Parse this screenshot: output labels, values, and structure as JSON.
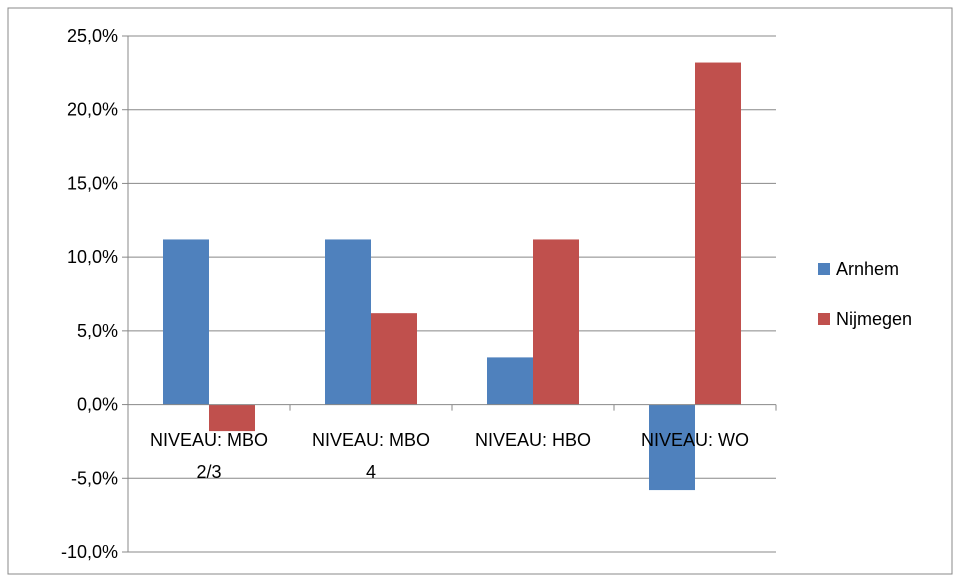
{
  "chart_data": {
    "type": "bar",
    "categories": [
      [
        "NIVEAU: MBO",
        "2/3"
      ],
      [
        "NIVEAU: MBO",
        "4"
      ],
      [
        "NIVEAU: HBO"
      ],
      [
        "NIVEAU: WO"
      ]
    ],
    "series": [
      {
        "name": "Arnhem",
        "color": "#4F81BD",
        "values": [
          11.2,
          11.2,
          3.2,
          -5.8
        ]
      },
      {
        "name": "Nijmegen",
        "color": "#C0504D",
        "values": [
          -1.8,
          6.2,
          11.2,
          23.2
        ]
      }
    ],
    "yticks": [
      "25,0%",
      "20,0%",
      "15,0%",
      "10,0%",
      "5,0%",
      "0,0%",
      "-5,0%",
      "-10,0%"
    ],
    "ytick_values": [
      25,
      20,
      15,
      10,
      5,
      0,
      -5,
      -10
    ],
    "ylim": [
      -10,
      25
    ],
    "grid": true,
    "legend_position": "right"
  }
}
